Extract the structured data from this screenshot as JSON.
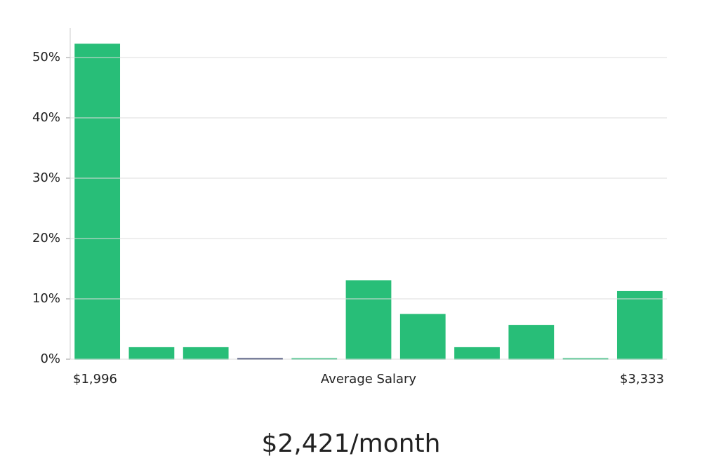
{
  "chart_data": {
    "type": "bar",
    "categories": [
      null,
      null,
      null,
      null,
      null,
      null,
      null,
      null,
      null,
      null,
      null
    ],
    "values": [
      52.2,
      1.9,
      1.9,
      0.1,
      0.1,
      13.0,
      7.4,
      1.9,
      5.6,
      0.1,
      11.2
    ],
    "colors": [
      "#28be78",
      "#28be78",
      "#28be78",
      "#1f2a5c",
      "#28be78",
      "#28be78",
      "#28be78",
      "#28be78",
      "#28be78",
      "#28be78",
      "#28be78"
    ],
    "ylim": [
      0,
      55
    ],
    "yticks": [
      {
        "value": 0,
        "label": "0%"
      },
      {
        "value": 10,
        "label": "10%"
      },
      {
        "value": 20,
        "label": "20%"
      },
      {
        "value": 30,
        "label": "30%"
      },
      {
        "value": 40,
        "label": "40%"
      },
      {
        "value": 50,
        "label": "50%"
      }
    ],
    "grid": true,
    "x_min_label": "$1,996",
    "xlabel": "Average Salary",
    "x_max_label": "$3,333",
    "caption": "$2,421/month"
  }
}
